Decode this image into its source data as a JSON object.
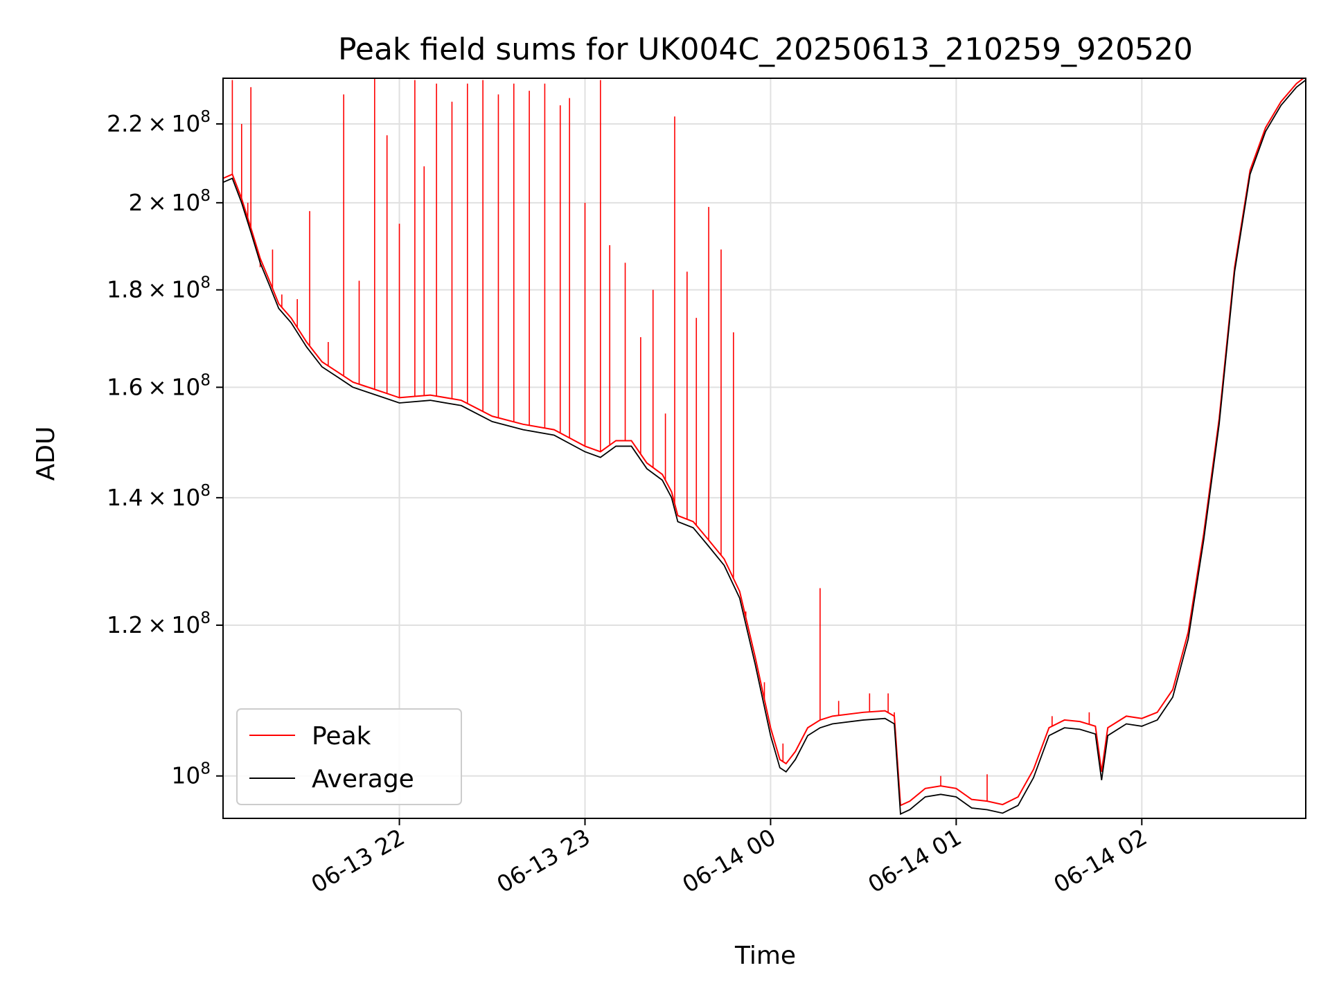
{
  "chart_data": {
    "type": "line",
    "title": "Peak field sums for UK004C_20250613_210259_920520",
    "xlabel": "Time",
    "ylabel": "ADU",
    "yscale": "log",
    "grid": true,
    "legend_position": "lower-left",
    "xlim": [
      "2025-06-13 21:03",
      "2025-06-14 02:53"
    ],
    "ylim": [
      95000000.0,
      232500000.0
    ],
    "x_ticks": [
      {
        "value": "2025-06-13 22:00",
        "label": "06-13 22"
      },
      {
        "value": "2025-06-13 23:00",
        "label": "06-13 23"
      },
      {
        "value": "2025-06-14 00:00",
        "label": "06-14 00"
      },
      {
        "value": "2025-06-14 01:00",
        "label": "06-14 01"
      },
      {
        "value": "2025-06-14 02:00",
        "label": "06-14 02"
      }
    ],
    "y_ticks": [
      {
        "value": 100000000.0,
        "mantissa": "",
        "exponent": "8",
        "base": "10"
      },
      {
        "value": 120000000.0,
        "mantissa": "1.2",
        "exponent": "8",
        "base": "10"
      },
      {
        "value": 140000000.0,
        "mantissa": "1.4",
        "exponent": "8",
        "base": "10"
      },
      {
        "value": 160000000.0,
        "mantissa": "1.6",
        "exponent": "8",
        "base": "10"
      },
      {
        "value": 180000000.0,
        "mantissa": "1.8",
        "exponent": "8",
        "base": "10"
      },
      {
        "value": 200000000.0,
        "mantissa": "2",
        "exponent": "8",
        "base": "10"
      },
      {
        "value": 220000000.0,
        "mantissa": "2.2",
        "exponent": "8",
        "base": "10"
      }
    ],
    "series": [
      {
        "name": "Average",
        "color": "#000000",
        "points": [
          [
            "2025-06-13 21:03",
            205000000.0
          ],
          [
            "2025-06-13 21:06",
            206000000.0
          ],
          [
            "2025-06-13 21:09",
            200000000.0
          ],
          [
            "2025-06-13 21:12",
            193000000.0
          ],
          [
            "2025-06-13 21:15",
            186000000.0
          ],
          [
            "2025-06-13 21:18",
            181000000.0
          ],
          [
            "2025-06-13 21:21",
            176000000.0
          ],
          [
            "2025-06-13 21:25",
            173000000.0
          ],
          [
            "2025-06-13 21:30",
            168000000.0
          ],
          [
            "2025-06-13 21:35",
            164000000.0
          ],
          [
            "2025-06-13 21:40",
            162000000.0
          ],
          [
            "2025-06-13 21:45",
            160000000.0
          ],
          [
            "2025-06-13 21:50",
            159000000.0
          ],
          [
            "2025-06-13 21:55",
            158000000.0
          ],
          [
            "2025-06-13 22:00",
            157000000.0
          ],
          [
            "2025-06-13 22:10",
            157500000.0
          ],
          [
            "2025-06-13 22:20",
            156500000.0
          ],
          [
            "2025-06-13 22:30",
            153500000.0
          ],
          [
            "2025-06-13 22:40",
            152000000.0
          ],
          [
            "2025-06-13 22:50",
            151000000.0
          ],
          [
            "2025-06-13 23:00",
            148000000.0
          ],
          [
            "2025-06-13 23:05",
            147000000.0
          ],
          [
            "2025-06-13 23:10",
            149000000.0
          ],
          [
            "2025-06-13 23:15",
            149000000.0
          ],
          [
            "2025-06-13 23:20",
            145000000.0
          ],
          [
            "2025-06-13 23:25",
            143000000.0
          ],
          [
            "2025-06-13 23:28",
            140000000.0
          ],
          [
            "2025-06-13 23:30",
            136000000.0
          ],
          [
            "2025-06-13 23:35",
            135000000.0
          ],
          [
            "2025-06-13 23:40",
            132000000.0
          ],
          [
            "2025-06-13 23:45",
            129000000.0
          ],
          [
            "2025-06-13 23:50",
            124000000.0
          ],
          [
            "2025-06-13 23:55",
            114500000.0
          ],
          [
            "2025-06-14 00:00",
            105000000.0
          ],
          [
            "2025-06-14 00:03",
            101000000.0
          ],
          [
            "2025-06-14 00:05",
            100500000.0
          ],
          [
            "2025-06-14 00:08",
            102000000.0
          ],
          [
            "2025-06-14 00:12",
            105000000.0
          ],
          [
            "2025-06-14 00:16",
            106000000.0
          ],
          [
            "2025-06-14 00:20",
            106500000.0
          ],
          [
            "2025-06-14 00:30",
            107000000.0
          ],
          [
            "2025-06-14 00:37",
            107200000.0
          ],
          [
            "2025-06-14 00:40",
            106500000.0
          ],
          [
            "2025-06-14 00:42",
            95500000.0
          ],
          [
            "2025-06-14 00:45",
            96000000.0
          ],
          [
            "2025-06-14 00:50",
            97500000.0
          ],
          [
            "2025-06-14 00:55",
            97800000.0
          ],
          [
            "2025-06-14 01:00",
            97500000.0
          ],
          [
            "2025-06-14 01:05",
            96200000.0
          ],
          [
            "2025-06-14 01:10",
            96000000.0
          ],
          [
            "2025-06-14 01:15",
            95600000.0
          ],
          [
            "2025-06-14 01:20",
            96500000.0
          ],
          [
            "2025-06-14 01:25",
            99800000.0
          ],
          [
            "2025-06-14 01:30",
            105000000.0
          ],
          [
            "2025-06-14 01:35",
            106000000.0
          ],
          [
            "2025-06-14 01:40",
            105800000.0
          ],
          [
            "2025-06-14 01:45",
            105200000.0
          ],
          [
            "2025-06-14 01:47",
            99500000.0
          ],
          [
            "2025-06-14 01:49",
            105000000.0
          ],
          [
            "2025-06-14 01:55",
            106500000.0
          ],
          [
            "2025-06-14 02:00",
            106200000.0
          ],
          [
            "2025-06-14 02:05",
            107000000.0
          ],
          [
            "2025-06-14 02:10",
            110000000.0
          ],
          [
            "2025-06-14 02:15",
            118000000.0
          ],
          [
            "2025-06-14 02:20",
            133000000.0
          ],
          [
            "2025-06-14 02:25",
            153000000.0
          ],
          [
            "2025-06-14 02:30",
            184000000.0
          ],
          [
            "2025-06-14 02:35",
            207000000.0
          ],
          [
            "2025-06-14 02:40",
            218000000.0
          ],
          [
            "2025-06-14 02:45",
            225000000.0
          ],
          [
            "2025-06-14 02:50",
            230000000.0
          ],
          [
            "2025-06-14 02:53",
            232000000.0
          ]
        ]
      },
      {
        "name": "Peak",
        "color": "#ff0000",
        "description_of_baseline": "Peak tracks Average with small positive offset plus the spikes below",
        "baseline_offset": 1000000.0,
        "spikes": [
          [
            "2025-06-13 21:06",
            232000000.0
          ],
          [
            "2025-06-13 21:09",
            220000000.0
          ],
          [
            "2025-06-13 21:11",
            200000000.0
          ],
          [
            "2025-06-13 21:12",
            230000000.0
          ],
          [
            "2025-06-13 21:15",
            185000000.0
          ],
          [
            "2025-06-13 21:19",
            189000000.0
          ],
          [
            "2025-06-13 21:22",
            179000000.0
          ],
          [
            "2025-06-13 21:27",
            178000000.0
          ],
          [
            "2025-06-13 21:31",
            198000000.0
          ],
          [
            "2025-06-13 21:37",
            169000000.0
          ],
          [
            "2025-06-13 21:42",
            228000000.0
          ],
          [
            "2025-06-13 21:47",
            182000000.0
          ],
          [
            "2025-06-13 21:52",
            234000000.0
          ],
          [
            "2025-06-13 21:56",
            217000000.0
          ],
          [
            "2025-06-13 22:00",
            195000000.0
          ],
          [
            "2025-06-13 22:05",
            232000000.0
          ],
          [
            "2025-06-13 22:08",
            209000000.0
          ],
          [
            "2025-06-13 22:12",
            231000000.0
          ],
          [
            "2025-06-13 22:17",
            226000000.0
          ],
          [
            "2025-06-13 22:22",
            231000000.0
          ],
          [
            "2025-06-13 22:27",
            232000000.0
          ],
          [
            "2025-06-13 22:32",
            228000000.0
          ],
          [
            "2025-06-13 22:37",
            231000000.0
          ],
          [
            "2025-06-13 22:42",
            229000000.0
          ],
          [
            "2025-06-13 22:47",
            231000000.0
          ],
          [
            "2025-06-13 22:52",
            225000000.0
          ],
          [
            "2025-06-13 22:55",
            227000000.0
          ],
          [
            "2025-06-13 23:00",
            200000000.0
          ],
          [
            "2025-06-13 23:05",
            232000000.0
          ],
          [
            "2025-06-13 23:08",
            190000000.0
          ],
          [
            "2025-06-13 23:13",
            186000000.0
          ],
          [
            "2025-06-13 23:18",
            170000000.0
          ],
          [
            "2025-06-13 23:22",
            180000000.0
          ],
          [
            "2025-06-13 23:26",
            155000000.0
          ],
          [
            "2025-06-13 23:29",
            222000000.0
          ],
          [
            "2025-06-13 23:33",
            184000000.0
          ],
          [
            "2025-06-13 23:36",
            174000000.0
          ],
          [
            "2025-06-13 23:40",
            199000000.0
          ],
          [
            "2025-06-13 23:44",
            189000000.0
          ],
          [
            "2025-06-13 23:48",
            171000000.0
          ],
          [
            "2025-06-13 23:52",
            122000000.0
          ],
          [
            "2025-06-13 23:58",
            112000000.0
          ],
          [
            "2025-06-14 00:04",
            104000000.0
          ],
          [
            "2025-06-14 00:16",
            125500000.0
          ],
          [
            "2025-06-14 00:22",
            109500000.0
          ],
          [
            "2025-06-14 00:32",
            110500000.0
          ],
          [
            "2025-06-14 00:38",
            110500000.0
          ],
          [
            "2025-06-14 00:40",
            108000000.0
          ],
          [
            "2025-06-14 00:55",
            100000000.0
          ],
          [
            "2025-06-14 01:10",
            100200000.0
          ],
          [
            "2025-06-14 01:31",
            107500000.0
          ],
          [
            "2025-06-14 01:43",
            108000000.0
          ]
        ]
      }
    ],
    "legend": [
      {
        "label": "Peak",
        "color": "#ff0000"
      },
      {
        "label": "Average",
        "color": "#000000"
      }
    ]
  }
}
